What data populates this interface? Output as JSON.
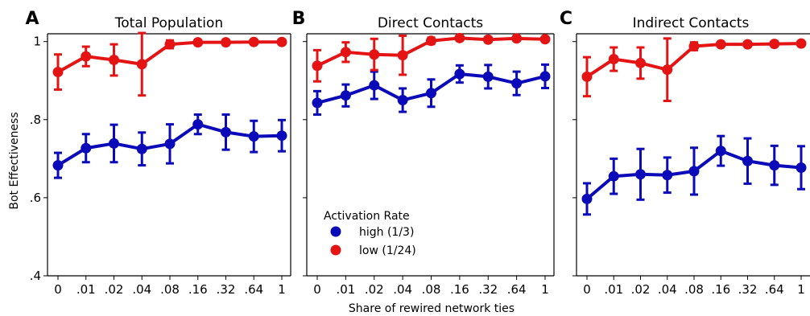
{
  "chart_data": {
    "type": "line",
    "ylabel": "Bot Effectiveness",
    "xlabel": "Share of rewired network ties",
    "categories": [
      "0",
      ".01",
      ".02",
      ".04",
      ".08",
      ".16",
      ".32",
      ".64",
      "1"
    ],
    "yticks": [
      {
        "value": 0.4,
        "label": ".4"
      },
      {
        "value": 0.6,
        "label": ".6"
      },
      {
        "value": 0.8,
        "label": ".8"
      },
      {
        "value": 1.0,
        "label": "1"
      }
    ],
    "ylim": [
      0.4,
      1.02
    ],
    "legend": {
      "title": "Activation Rate",
      "placement": "lower-left of panel B",
      "entries": [
        {
          "label": "high (1/3)",
          "color": "#0a0ab8"
        },
        {
          "label": "low (1/24)",
          "color": "#e41414"
        }
      ]
    },
    "panels": [
      {
        "letter": "A",
        "title": "Total Population",
        "series": [
          {
            "name": "high (1/3)",
            "color": "#0a0ab8",
            "values": [
              0.683,
              0.727,
              0.739,
              0.725,
              0.738,
              0.788,
              0.768,
              0.757,
              0.759
            ],
            "err": [
              0.032,
              0.036,
              0.048,
              0.042,
              0.05,
              0.025,
              0.045,
              0.04,
              0.04
            ]
          },
          {
            "name": "low (1/24)",
            "color": "#e41414",
            "values": [
              0.922,
              0.962,
              0.953,
              0.942,
              0.993,
              0.998,
              0.998,
              0.999,
              0.999
            ],
            "err": [
              0.045,
              0.025,
              0.04,
              0.08,
              0.01,
              0.005,
              0.004,
              0.003,
              0.003
            ]
          }
        ]
      },
      {
        "letter": "B",
        "title": "Direct Contacts",
        "series": [
          {
            "name": "high (1/3)",
            "color": "#0a0ab8",
            "values": [
              0.843,
              0.862,
              0.888,
              0.85,
              0.868,
              0.917,
              0.91,
              0.893,
              0.911
            ],
            "err": [
              0.03,
              0.028,
              0.035,
              0.03,
              0.035,
              0.022,
              0.03,
              0.03,
              0.03
            ]
          },
          {
            "name": "low (1/24)",
            "color": "#e41414",
            "values": [
              0.938,
              0.973,
              0.967,
              0.965,
              1.002,
              1.009,
              1.005,
              1.008,
              1.006
            ],
            "err": [
              0.04,
              0.025,
              0.04,
              0.05,
              0.008,
              0.004,
              0.004,
              0.004,
              0.004
            ]
          }
        ]
      },
      {
        "letter": "C",
        "title": "Indirect Contacts",
        "series": [
          {
            "name": "high (1/3)",
            "color": "#0a0ab8",
            "values": [
              0.597,
              0.655,
              0.66,
              0.658,
              0.668,
              0.72,
              0.694,
              0.683,
              0.677
            ],
            "err": [
              0.04,
              0.045,
              0.065,
              0.045,
              0.06,
              0.038,
              0.058,
              0.05,
              0.055
            ]
          },
          {
            "name": "low (1/24)",
            "color": "#e41414",
            "values": [
              0.91,
              0.955,
              0.945,
              0.928,
              0.988,
              0.993,
              0.993,
              0.994,
              0.995
            ],
            "err": [
              0.05,
              0.03,
              0.04,
              0.08,
              0.01,
              0.005,
              0.004,
              0.004,
              0.004
            ]
          }
        ]
      }
    ]
  }
}
